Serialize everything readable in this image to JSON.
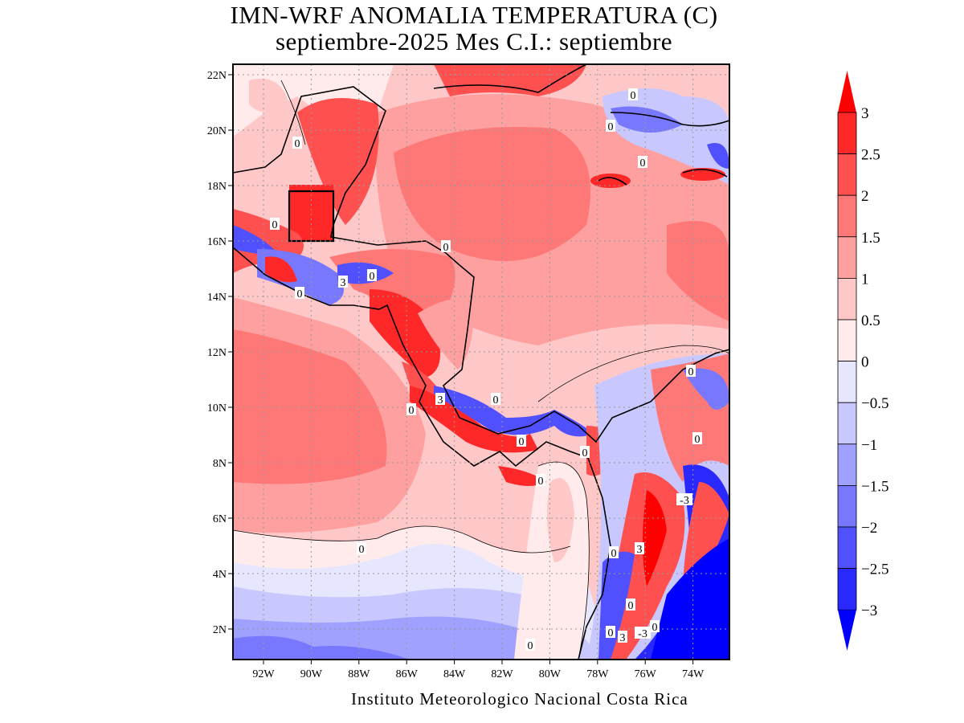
{
  "title": {
    "line1": "IMN-WRF  ANOMALIA TEMPERATURA (C)",
    "line2": "septiembre-2025 Mes C.I.: septiembre"
  },
  "map": {
    "lat_ticks": [
      "22N",
      "20N",
      "18N",
      "16N",
      "14N",
      "12N",
      "10N",
      "8N",
      "6N",
      "4N",
      "2N"
    ],
    "lon_ticks": [
      "92W",
      "90W",
      "88W",
      "86W",
      "84W",
      "82W",
      "80W",
      "78W",
      "76W",
      "74W"
    ],
    "contour_labels": [
      "0",
      "0",
      "0",
      "0",
      "0",
      "0",
      "0",
      "0",
      "0",
      "0",
      "0",
      "0",
      "0",
      "0",
      "0",
      "0",
      "0",
      "0",
      "0",
      "0",
      "0",
      "3",
      "3",
      "3",
      "3",
      "-3",
      "-3"
    ]
  },
  "colorbar": {
    "labels": [
      "3",
      "2.5",
      "2",
      "1.5",
      "1",
      "0.5",
      "0",
      "−0.5",
      "−1",
      "−1.5",
      "−2",
      "−2.5",
      "−3"
    ],
    "colors": [
      "#ff0000",
      "#ff2828",
      "#ff5050",
      "#ff7878",
      "#ffa0a0",
      "#ffc8c8",
      "#ffebeb",
      "#e6e6ff",
      "#c8c8ff",
      "#a0a0ff",
      "#7878ff",
      "#5050ff",
      "#2828ff",
      "#0000ff"
    ]
  },
  "credit": "Instituto Meteorologico Nacional Costa Rica"
}
